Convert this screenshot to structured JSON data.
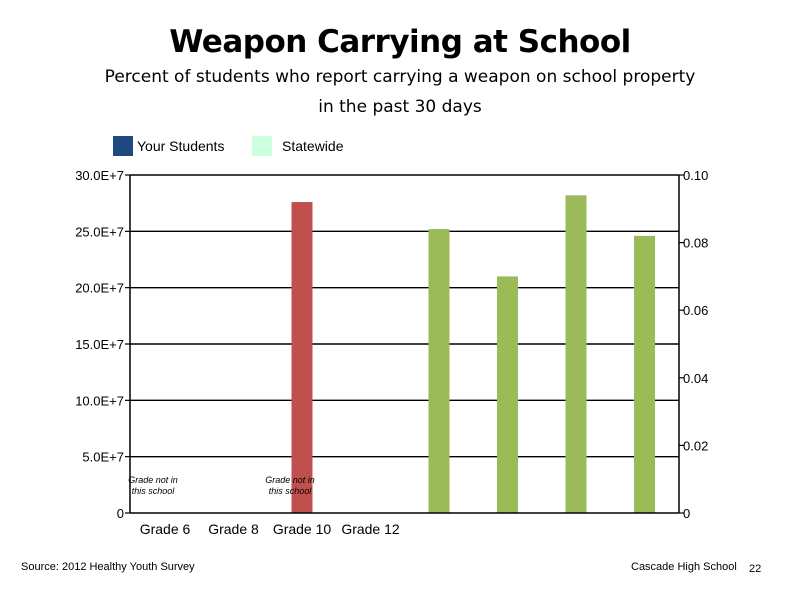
{
  "chart_data": {
    "type": "bar",
    "title": "Weapon Carrying at School",
    "subtitle_lines": [
      "Percent of students who report carrying a weapon on school property",
      "in the past 30 days"
    ],
    "legend": {
      "placement": "top-left",
      "entries": [
        {
          "name": "Your Students",
          "color": "#1F497D"
        },
        {
          "name": "Statewide",
          "color": "#CCFFDD"
        }
      ]
    },
    "grid": true,
    "categories": [
      "Grade 6",
      "Grade 8",
      "Grade 10",
      "Grade 12"
    ],
    "left_axis": {
      "ylim": [
        0,
        300000000
      ],
      "ticks": [
        0,
        50000000,
        100000000,
        150000000,
        200000000,
        250000000,
        300000000
      ],
      "tick_labels": [
        "0",
        "5.0E+7",
        "10.0E+7",
        "15.0E+7",
        "20.0E+7",
        "25.0E+7",
        "30.0E+7"
      ]
    },
    "right_axis": {
      "ylim": [
        0,
        0.1
      ],
      "ticks": [
        0,
        0.02,
        0.04,
        0.06,
        0.08,
        0.1
      ],
      "tick_labels": [
        "0",
        "0.02",
        "0.04",
        "0.06",
        "0.08",
        "0.10"
      ]
    },
    "series": [
      {
        "axis": "left",
        "color": "#C0504D",
        "points": [
          {
            "slot": 2,
            "value": 276000000
          }
        ]
      },
      {
        "axis": "right",
        "color": "#9BBB59",
        "points": [
          {
            "slot": 4,
            "value": 0.084
          },
          {
            "slot": 5,
            "value": 0.07
          },
          {
            "slot": 6,
            "value": 0.094
          },
          {
            "slot": 7,
            "value": 0.082
          }
        ]
      }
    ],
    "annotations": [
      {
        "slot": 0,
        "lines": [
          "Grade not in",
          "this school"
        ]
      },
      {
        "slot": 2,
        "lines": [
          "Grade not in",
          "this school"
        ]
      }
    ]
  },
  "footer": {
    "source": "Source: 2012 Healthy Youth Survey",
    "school": "Cascade High School",
    "page": "22"
  }
}
